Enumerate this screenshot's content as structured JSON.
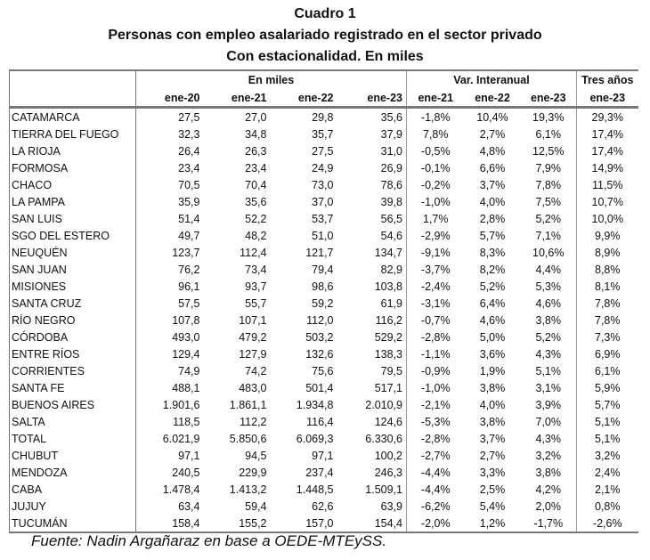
{
  "title": "Cuadro 1",
  "subtitle": "Personas con empleo asalariado registrado en el sector privado",
  "subtitle2": "Con estacionalidad. En miles",
  "groups": {
    "miles": "En miles",
    "var": "Var. Interanual",
    "tres": "Tres años"
  },
  "columns": [
    "ene-20",
    "ene-21",
    "ene-22",
    "ene-23",
    "ene-21",
    "ene-22",
    "ene-23",
    "ene-23"
  ],
  "rows": [
    [
      "CATAMARCA",
      "27,5",
      "27,0",
      "29,8",
      "35,6",
      "-1,8%",
      "10,4%",
      "19,3%",
      "29,3%"
    ],
    [
      "TIERRA DEL FUEGO",
      "32,3",
      "34,8",
      "35,7",
      "37,9",
      "7,8%",
      "2,7%",
      "6,1%",
      "17,4%"
    ],
    [
      "LA RIOJA",
      "26,4",
      "26,3",
      "27,5",
      "31,0",
      "-0,5%",
      "4,8%",
      "12,5%",
      "17,4%"
    ],
    [
      "FORMOSA",
      "23,4",
      "23,4",
      "24,9",
      "26,9",
      "-0,1%",
      "6,6%",
      "7,9%",
      "14,9%"
    ],
    [
      "CHACO",
      "70,5",
      "70,4",
      "73,0",
      "78,6",
      "-0,2%",
      "3,7%",
      "7,8%",
      "11,5%"
    ],
    [
      "LA PAMPA",
      "35,9",
      "35,6",
      "37,0",
      "39,8",
      "-1,0%",
      "4,0%",
      "7,5%",
      "10,7%"
    ],
    [
      "SAN LUIS",
      "51,4",
      "52,2",
      "53,7",
      "56,5",
      "1,7%",
      "2,8%",
      "5,2%",
      "10,0%"
    ],
    [
      "SGO DEL ESTERO",
      "49,7",
      "48,2",
      "51,0",
      "54,6",
      "-2,9%",
      "5,7%",
      "7,1%",
      "9,9%"
    ],
    [
      "NEUQUÉN",
      "123,7",
      "112,4",
      "121,7",
      "134,7",
      "-9,1%",
      "8,3%",
      "10,6%",
      "8,9%"
    ],
    [
      "SAN JUAN",
      "76,2",
      "73,4",
      "79,4",
      "82,9",
      "-3,7%",
      "8,2%",
      "4,4%",
      "8,8%"
    ],
    [
      "MISIONES",
      "96,1",
      "93,7",
      "98,6",
      "103,8",
      "-2,4%",
      "5,2%",
      "5,3%",
      "8,1%"
    ],
    [
      "SANTA CRUZ",
      "57,5",
      "55,7",
      "59,2",
      "61,9",
      "-3,1%",
      "6,4%",
      "4,6%",
      "7,8%"
    ],
    [
      "RÍO NEGRO",
      "107,8",
      "107,1",
      "112,0",
      "116,2",
      "-0,7%",
      "4,6%",
      "3,8%",
      "7,8%"
    ],
    [
      "CÓRDOBA",
      "493,0",
      "479,2",
      "503,2",
      "529,2",
      "-2,8%",
      "5,0%",
      "5,2%",
      "7,3%"
    ],
    [
      "ENTRE RÍOS",
      "129,4",
      "127,9",
      "132,6",
      "138,3",
      "-1,1%",
      "3,6%",
      "4,3%",
      "6,9%"
    ],
    [
      "CORRIENTES",
      "74,9",
      "74,2",
      "75,6",
      "79,5",
      "-0,9%",
      "1,9%",
      "5,1%",
      "6,1%"
    ],
    [
      "SANTA FE",
      "488,1",
      "483,0",
      "501,4",
      "517,1",
      "-1,0%",
      "3,8%",
      "3,1%",
      "5,9%"
    ],
    [
      "BUENOS AIRES",
      "1.901,6",
      "1.861,1",
      "1.934,8",
      "2.010,9",
      "-2,1%",
      "4,0%",
      "3,9%",
      "5,7%"
    ],
    [
      "SALTA",
      "118,5",
      "112,2",
      "116,4",
      "124,6",
      "-5,3%",
      "3,8%",
      "7,0%",
      "5,1%"
    ],
    [
      "TOTAL",
      "6.021,9",
      "5.850,6",
      "6.069,3",
      "6.330,6",
      "-2,8%",
      "3,7%",
      "4,3%",
      "5,1%"
    ],
    [
      "CHUBUT",
      "97,1",
      "94,5",
      "97,1",
      "100,2",
      "-2,7%",
      "2,7%",
      "3,2%",
      "3,2%"
    ],
    [
      "MENDOZA",
      "240,5",
      "229,9",
      "237,4",
      "246,3",
      "-4,4%",
      "3,3%",
      "3,8%",
      "2,4%"
    ],
    [
      "CABA",
      "1.478,4",
      "1.413,2",
      "1.448,5",
      "1.509,1",
      "-4,4%",
      "2,5%",
      "4,2%",
      "2,1%"
    ],
    [
      "JUJUY",
      "63,4",
      "59,4",
      "62,6",
      "63,9",
      "-6,2%",
      "5,4%",
      "2,0%",
      "0,8%"
    ],
    [
      "TUCUMÁN",
      "158,4",
      "155,2",
      "157,0",
      "154,4",
      "-2,0%",
      "1,2%",
      "-1,7%",
      "-2,6%"
    ]
  ],
  "footer": "Fuente: Nadin Argañaraz en base a OEDE-MTEySS."
}
